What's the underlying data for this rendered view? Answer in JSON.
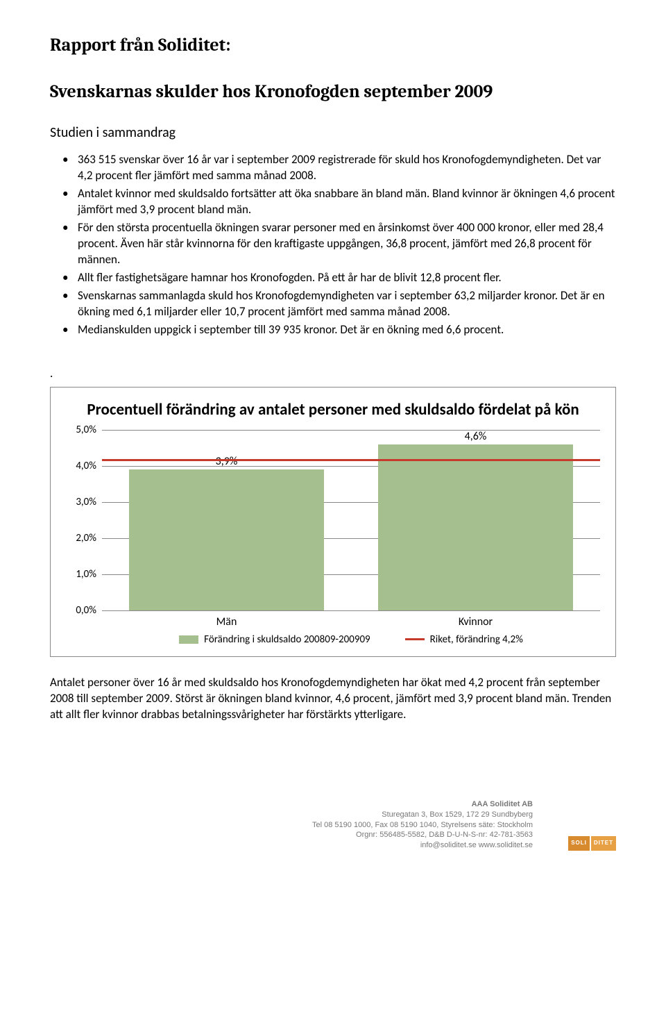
{
  "doc": {
    "report_from": "Rapport från Soliditet:",
    "title": "Svenskarnas skulder hos Kronofogden september 2009",
    "summary_heading": "Studien i sammandrag",
    "bullets": [
      "363 515 svenskar över 16 år var i september 2009 registrerade för skuld hos Kronofogdemyndigheten. Det var 4,2 procent fler jämfört med samma månad 2008.",
      "Antalet kvinnor med skuldsaldo fortsätter att öka snabbare än bland män. Bland kvinnor är ökningen 4,6 procent jämfört med 3,9 procent bland män.",
      "För den största procentuella ökningen svarar personer med en årsinkomst över 400 000 kronor, eller med 28,4 procent. Även här står kvinnorna för den kraftigaste uppgången, 36,8 procent, jämfört med 26,8 procent för männen.",
      "Allt fler fastighetsägare hamnar hos Kronofogden. På ett år har de blivit 12,8 procent fler.",
      "Svenskarnas sammanlagda skuld hos Kronofogdemyndigheten var  i september  63,2 miljarder kronor. Det är en ökning med 6,1 miljarder eller 10,7 procent jämfört med samma månad 2008.",
      " Medianskulden uppgick i september till 39 935 kronor. Det är en ökning med 6,6 procent."
    ],
    "body_after_chart": "Antalet personer över 16 år med skuldsaldo hos Kronofogdemyndigheten har ökat med 4,2 procent från september 2008 till september 2009. Störst är ökningen bland kvinnor, 4,6 procent, jämfört med 3,9 procent bland män.  Trenden att allt fler kvinnor drabbas betalningssvårigheter har förstärkts ytterligare."
  },
  "chart": {
    "type": "bar",
    "title": "Procentuell förändring av antalet personer med skuldsaldo fördelat på kön",
    "categories": [
      "Män",
      "Kvinnor"
    ],
    "values": [
      3.9,
      4.6
    ],
    "value_labels": [
      "3,9%",
      "4,6%"
    ],
    "bar_color": "#a6bf8e",
    "riket_value": 4.2,
    "riket_color": "#c63a2c",
    "y_ticks": [
      "0,0%",
      "1,0%",
      "2,0%",
      "3,0%",
      "4,0%",
      "5,0%"
    ],
    "y_max": 5.0,
    "grid_color": "#888888",
    "background_color": "#ffffff",
    "legend_bar": "Förändring i skuldsaldo 200809-200909",
    "legend_line": "Riket, förändring 4,2%"
  },
  "footer": {
    "company": "AAA Soliditet AB",
    "address": "Sturegatan 3, Box 1529, 172 29 Sundbyberg",
    "phone": "Tel 08 5190 1000, Fax 08 5190 1040, Styrelsens säte: Stockholm",
    "org": "Orgnr: 556485-5582, D&B D-U-N-S-nr: 42-781-3563",
    "web": "info@soliditet.se   www.soliditet.se",
    "logo_text": "SOLIDITET",
    "logo_bg_left": "#d88a2f",
    "logo_bg_right": "#e7a043"
  }
}
